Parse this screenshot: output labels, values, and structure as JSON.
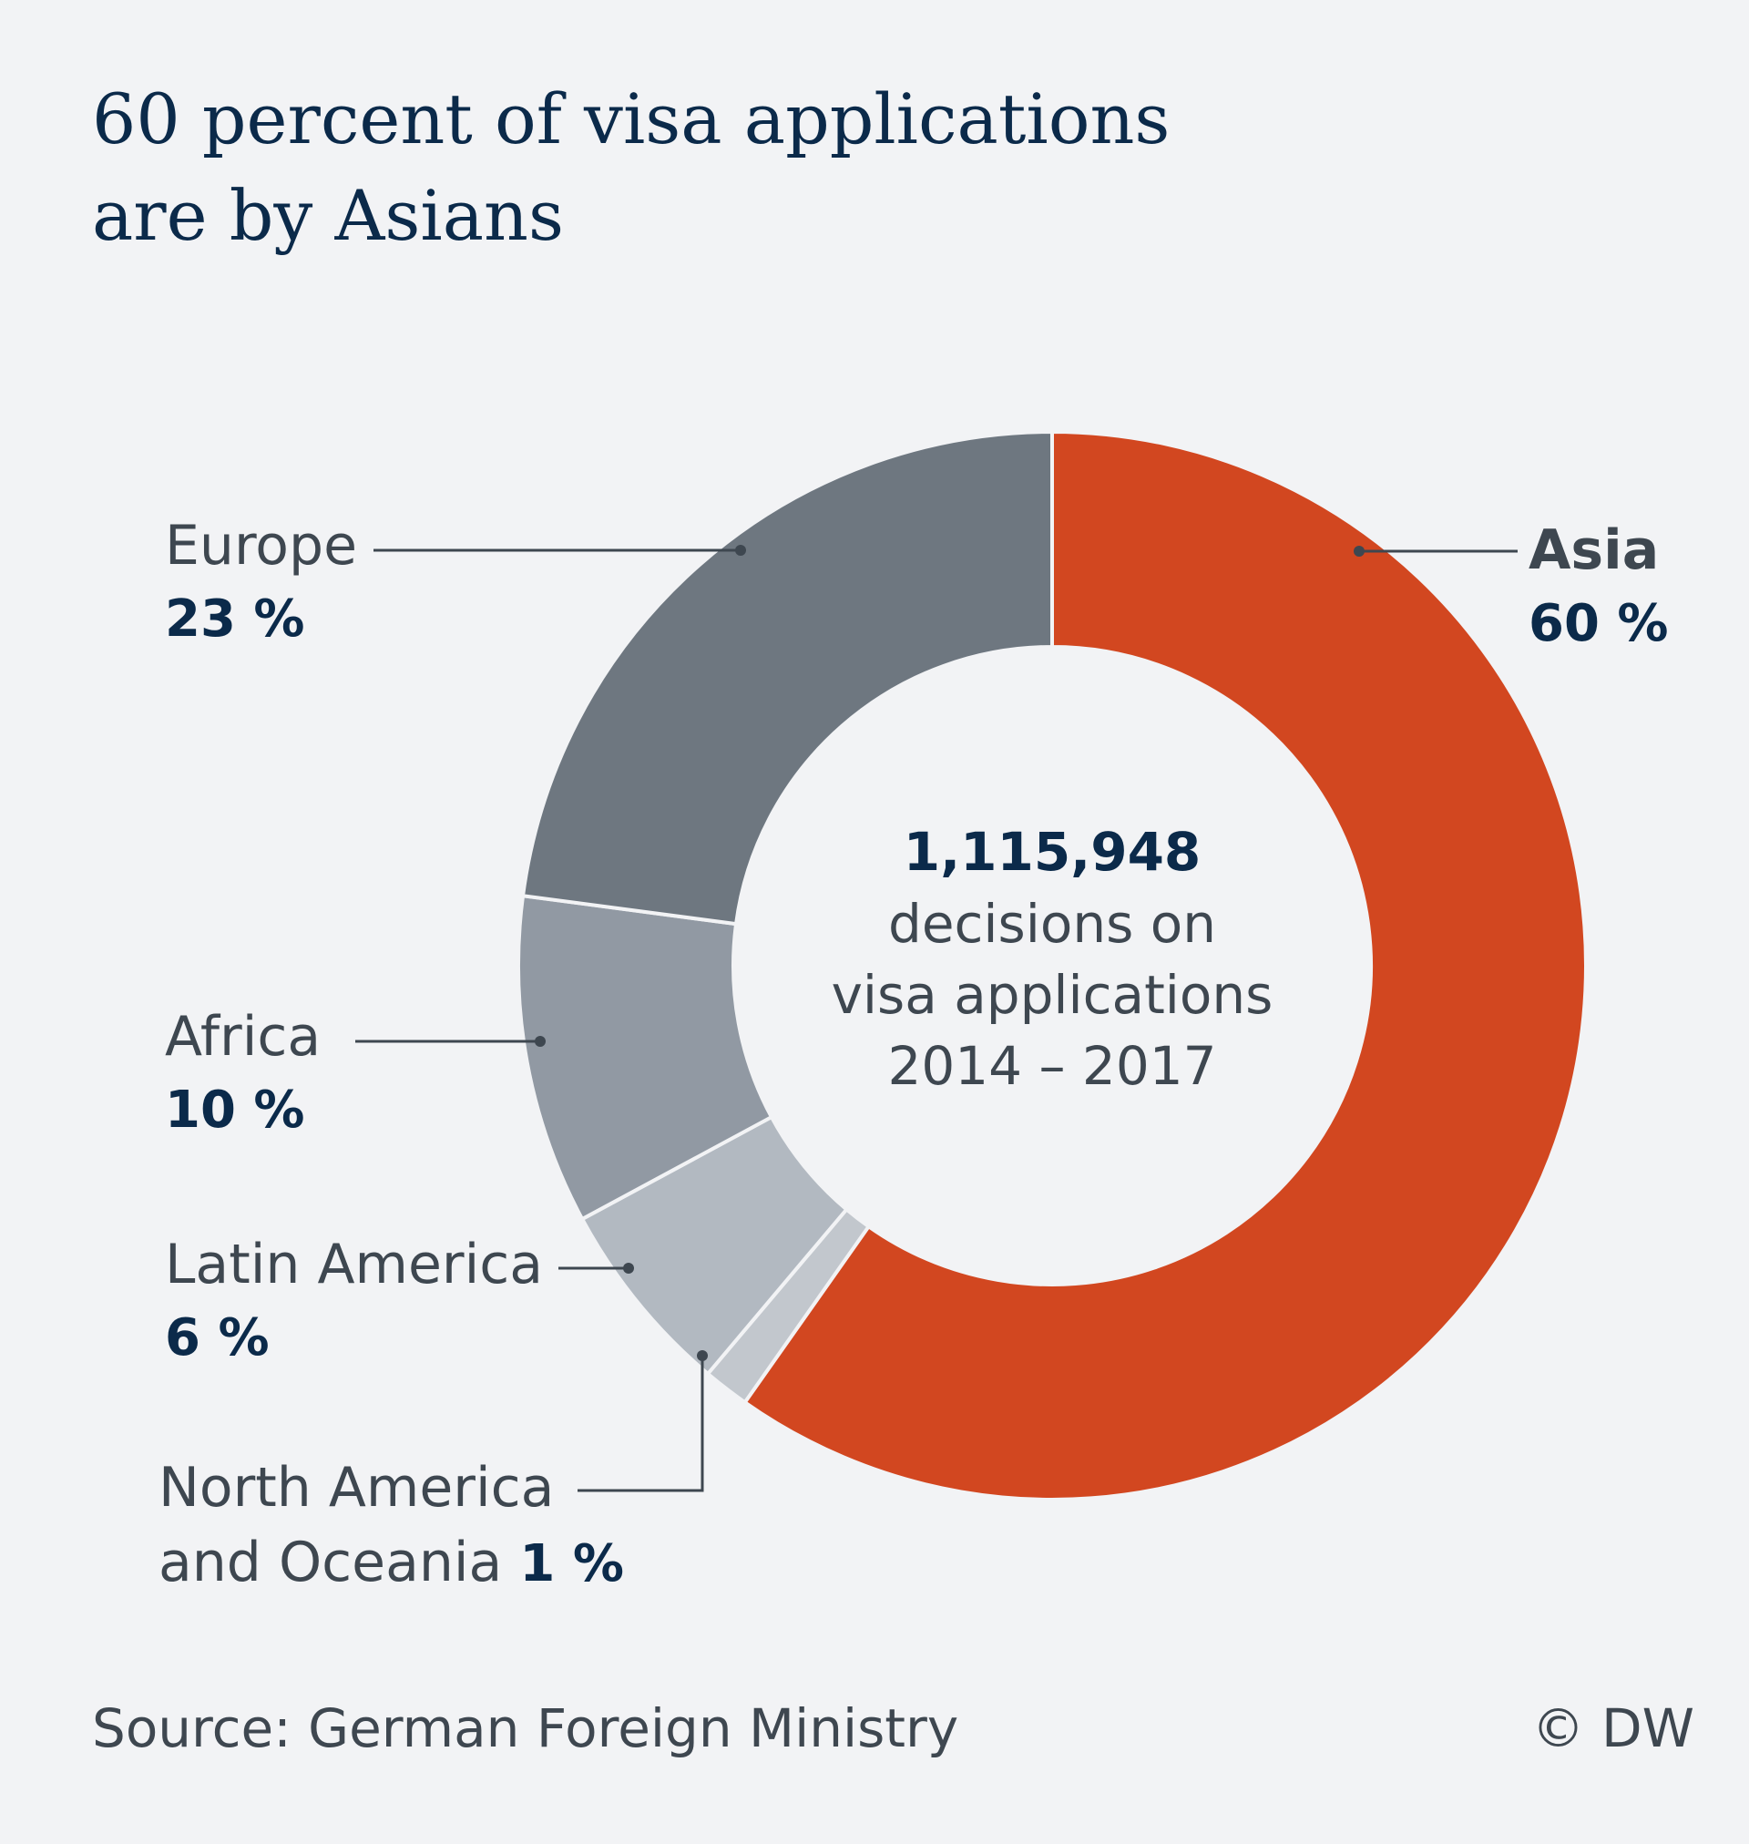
{
  "title_lines": [
    "60 percent of visa applications",
    "are by Asians"
  ],
  "chart_data": {
    "type": "pie",
    "donut": true,
    "title": "60 percent of visa applications are by Asians",
    "slices": [
      {
        "label": "Asia",
        "value": 60,
        "display": "60 %",
        "color": "#d24720"
      },
      {
        "label": "North America and Oceania",
        "value": 1.4,
        "display": "1 %",
        "color": "#c2c7cd"
      },
      {
        "label": "Latin America",
        "value": 6,
        "display": "6 %",
        "color": "#b2b9c1"
      },
      {
        "label": "Africa",
        "value": 10,
        "display": "10 %",
        "color": "#9199a3"
      },
      {
        "label": "Europe",
        "value": 23,
        "display": "23 %",
        "color": "#6e7780"
      }
    ],
    "center": {
      "total": "1,115,948",
      "description_lines": [
        "decisions on",
        "visa applications",
        "2014 – 2017"
      ]
    }
  },
  "labels": {
    "europe": {
      "name": "Europe",
      "pct": "23 %"
    },
    "asia": {
      "name": "Asia",
      "pct": "60 %"
    },
    "africa": {
      "name": "Africa",
      "pct": "10 %"
    },
    "latin_america": {
      "name": "Latin America",
      "pct": "6 %"
    },
    "north_america": {
      "line1": "North America",
      "line2": "and Oceania",
      "pct": "1 %"
    }
  },
  "footer": {
    "source": "Source: German Foreign Ministry",
    "credit": "© DW"
  }
}
